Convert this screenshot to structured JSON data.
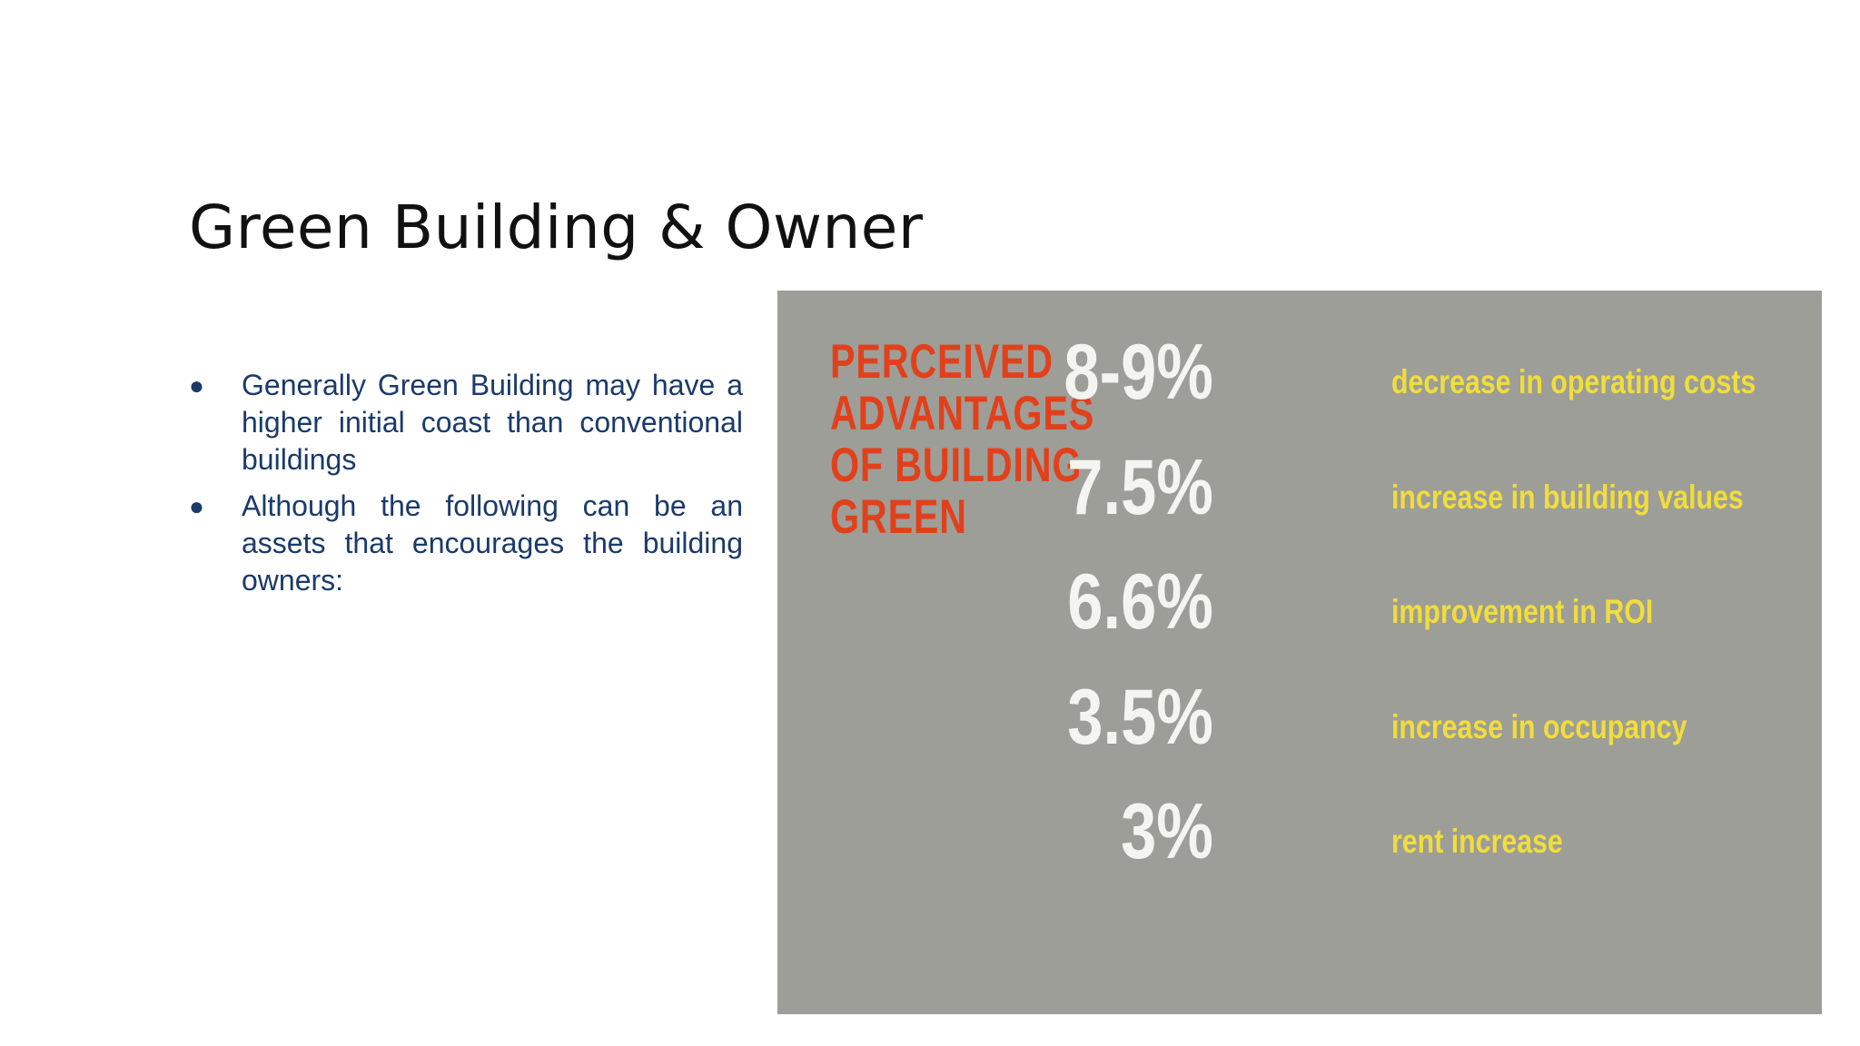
{
  "slide": {
    "title": "Green Building & Owner",
    "bullets": [
      "Generally Green Building  may have a higher initial  coast than conventional  buildings",
      "Although the following can  be an assets that  encourages the building owners:"
    ],
    "bullet_marker": "●"
  },
  "infographic": {
    "heading": "PERCEIVED ADVANTAGES OF BUILDING GREEN",
    "heading_color": "#e2401b",
    "value_color": "#f4f4f0",
    "description_color": "#f1dd3c",
    "background_color": "#9d9e98",
    "stats": [
      {
        "value": "8-9%",
        "description": "decrease in operating costs"
      },
      {
        "value": "7.5%",
        "description": "increase in building values"
      },
      {
        "value": "6.6%",
        "description": "improvement in ROI"
      },
      {
        "value": "3.5%",
        "description": "increase in occupancy"
      },
      {
        "value": "3%",
        "description": "rent increase"
      }
    ]
  }
}
